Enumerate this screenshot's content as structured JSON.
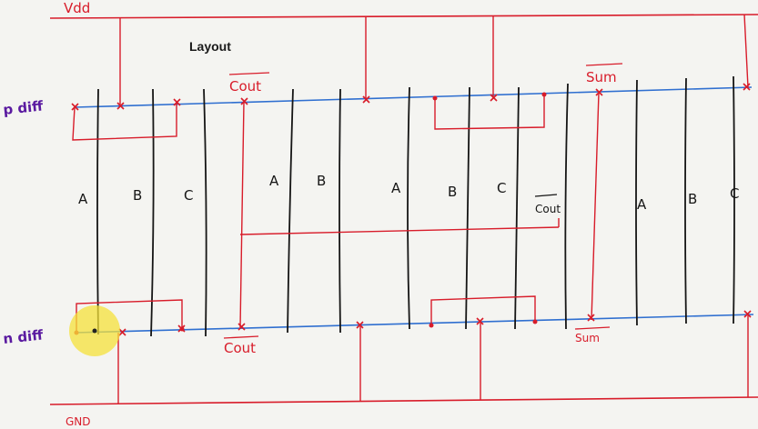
{
  "title": "Layout",
  "rails": {
    "vdd": "Vdd",
    "gnd": "GND"
  },
  "diffusion": {
    "p": "p diff",
    "n": "n diff"
  },
  "gate_labels": [
    "A",
    "B",
    "C",
    "A",
    "B",
    "A",
    "B",
    "C",
    "A",
    "B",
    "C"
  ],
  "net_labels": {
    "cout_bar_top": "Cout",
    "cout_bar_bottom": "Cout",
    "cout_bar_mid": "Cout",
    "sum_bar_top": "Sum",
    "sum_bar_bottom": "Sum"
  },
  "colors": {
    "rail": "#d81c2a",
    "metal": "#d81c2a",
    "diffusion": "#2f6fd0",
    "poly": "#151515",
    "label_diff": "#5a1aa0",
    "cursor_highlight": "#f5e23a"
  }
}
